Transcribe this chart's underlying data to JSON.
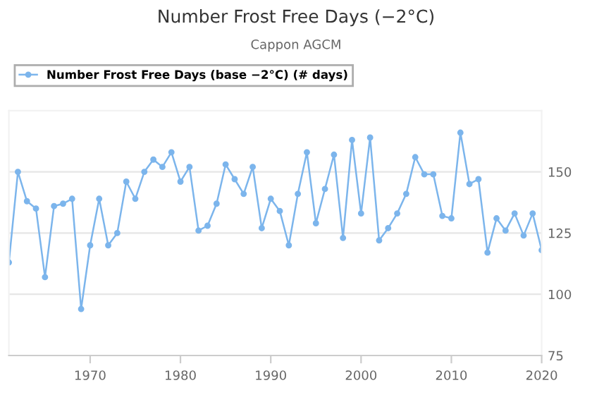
{
  "chart_data": {
    "type": "line",
    "title": "Number Frost Free Days (−2°C)",
    "subtitle": "Cappon AGCM",
    "x": [
      1961,
      1962,
      1963,
      1964,
      1965,
      1966,
      1967,
      1968,
      1969,
      1970,
      1971,
      1972,
      1973,
      1974,
      1975,
      1976,
      1977,
      1978,
      1979,
      1980,
      1981,
      1982,
      1983,
      1984,
      1985,
      1986,
      1987,
      1988,
      1989,
      1990,
      1991,
      1992,
      1993,
      1994,
      1995,
      1996,
      1997,
      1998,
      1999,
      2000,
      2001,
      2002,
      2003,
      2004,
      2005,
      2006,
      2007,
      2008,
      2009,
      2010,
      2011,
      2012,
      2013,
      2014,
      2015,
      2016,
      2017,
      2018,
      2019,
      2020
    ],
    "series": [
      {
        "name": "Number Frost Free Days (base −2°C) (# days)",
        "color": "#7cb5ec",
        "values": [
          113,
          150,
          138,
          135,
          107,
          136,
          137,
          139,
          94,
          120,
          139,
          120,
          125,
          146,
          139,
          150,
          155,
          152,
          158,
          146,
          152,
          126,
          128,
          137,
          153,
          147,
          141,
          152,
          127,
          139,
          134,
          120,
          141,
          158,
          129,
          143,
          157,
          123,
          163,
          133,
          164,
          122,
          127,
          133,
          141,
          156,
          149,
          149,
          132,
          131,
          166,
          145,
          147,
          117,
          131,
          126,
          133,
          124,
          133,
          118
        ]
      }
    ],
    "xlim": [
      1961,
      2020
    ],
    "xticks": [
      1970,
      1980,
      1990,
      2000,
      2010,
      2020
    ],
    "ylim": [
      75,
      175
    ],
    "yticks": [
      75,
      100,
      125,
      150,
      {
        "value": 175,
        "label": null
      }
    ],
    "grid": "y",
    "legend": "top left",
    "marker": "circle",
    "line_style": "solid"
  }
}
